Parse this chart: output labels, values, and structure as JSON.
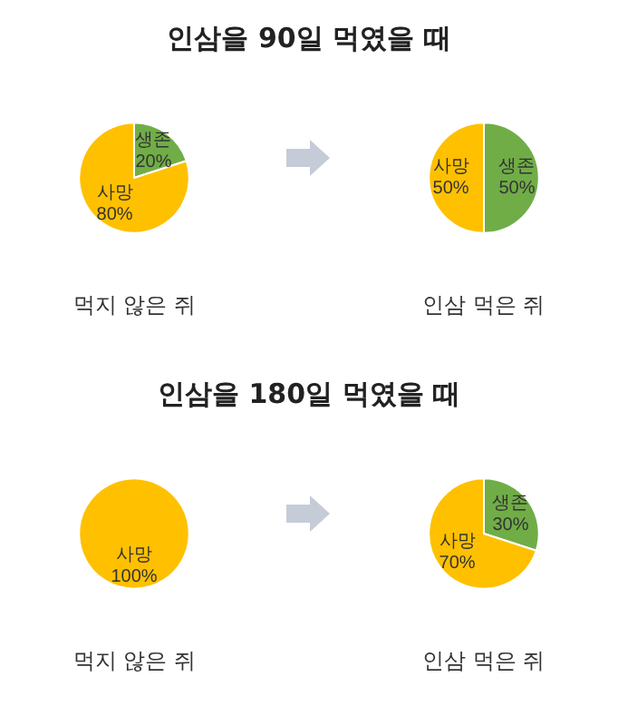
{
  "chart_data": [
    {
      "type": "pie",
      "title": "인삼을 90일 먹였을 때",
      "xlabel": "먹지 않은 쥐",
      "categories": [
        "생존",
        "사망"
      ],
      "values": [
        20,
        80
      ],
      "value_labels": [
        "20%",
        "80%"
      ],
      "colors": [
        "#70ad47",
        "#ffc000"
      ]
    },
    {
      "type": "pie",
      "xlabel": "인삼 먹은 쥐",
      "categories": [
        "생존",
        "사망"
      ],
      "values": [
        50,
        50
      ],
      "value_labels": [
        "50%",
        "50%"
      ],
      "colors": [
        "#70ad47",
        "#ffc000"
      ]
    },
    {
      "type": "pie",
      "title": "인삼을 180일 먹였을 때",
      "xlabel": "먹지 않은 쥐",
      "categories": [
        "사망"
      ],
      "values": [
        100
      ],
      "value_labels": [
        "100%"
      ],
      "colors": [
        "#ffc000"
      ]
    },
    {
      "type": "pie",
      "xlabel": "인삼 먹은 쥐",
      "categories": [
        "생존",
        "사망"
      ],
      "values": [
        30,
        70
      ],
      "value_labels": [
        "30%",
        "70%"
      ],
      "colors": [
        "#70ad47",
        "#ffc000"
      ]
    }
  ]
}
